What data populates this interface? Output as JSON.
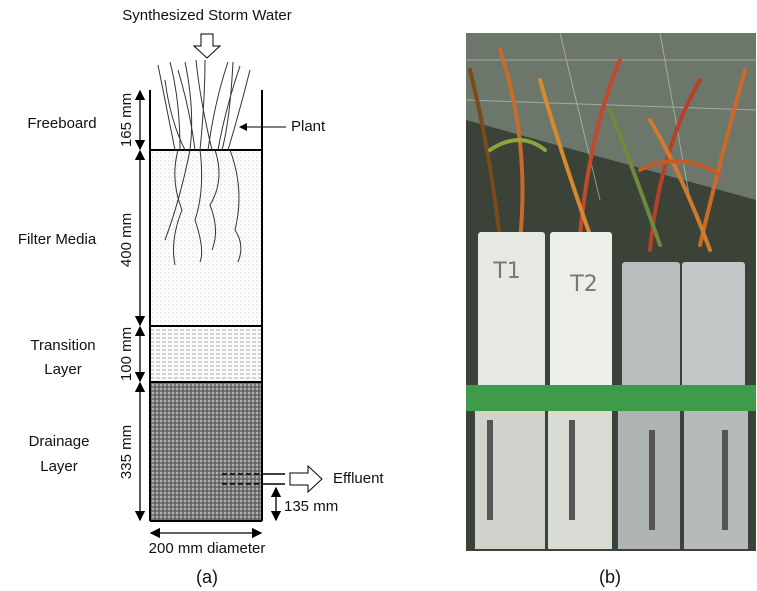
{
  "diagram": {
    "inflow_label": "Synthesized Storm Water",
    "layers": [
      {
        "label": [
          "Freeboard"
        ],
        "depth": "165 mm"
      },
      {
        "label": [
          "Filter Media"
        ],
        "depth": "400 mm"
      },
      {
        "label": [
          "Transition",
          "Layer"
        ],
        "depth": "100 mm"
      },
      {
        "label": [
          "Drainage",
          "Layer"
        ],
        "depth": "335 mm"
      }
    ],
    "plant_label": "Plant",
    "effluent_label": "Effluent",
    "outlet_height": "135 mm",
    "diameter_label": "200 mm diameter",
    "caption": "(a)"
  },
  "photo": {
    "column_labels": [
      "T1",
      "T2"
    ],
    "caption": "(b)"
  }
}
